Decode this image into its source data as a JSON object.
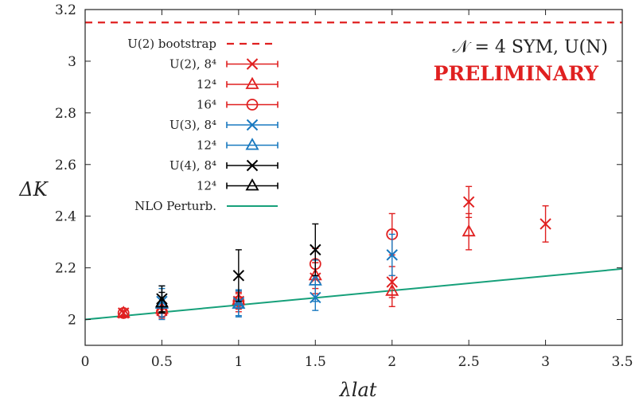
{
  "chart_data": {
    "type": "scatter",
    "xlabel": "λlat",
    "ylabel": "ΔK",
    "xlim": [
      0,
      3.5
    ],
    "ylim": [
      1.9,
      3.2
    ],
    "xticks": [
      "0",
      "0.5",
      "1",
      "1.5",
      "2",
      "2.5",
      "3",
      "3.5"
    ],
    "yticks": [
      "2",
      "2.2",
      "2.4",
      "2.6",
      "2.8",
      "3",
      "3.2"
    ],
    "grid": false,
    "legend_position": "top-left",
    "annotation": {
      "title": "𝒩 = 4 SYM, U(N)",
      "subtitle": "PRELIMINARY"
    },
    "colors": {
      "red": "#e02020",
      "blue": "#1a7ac0",
      "black": "#000000",
      "green": "#16a07a"
    },
    "bootstrap": {
      "name": "U(2) bootstrap",
      "y": 3.15,
      "color": "#e02020"
    },
    "perturbative": {
      "name": "NLO Perturb.",
      "x": [
        0,
        3.5
      ],
      "y": [
        2.0,
        2.196
      ],
      "color": "#16a07a"
    },
    "series": [
      {
        "name": "U(2), 8⁴",
        "marker": "x",
        "color": "#e02020",
        "points": [
          {
            "x": 0.25,
            "y": 2.025,
            "err": 0.01
          },
          {
            "x": 0.5,
            "y": 2.035,
            "err": 0.03
          },
          {
            "x": 1.0,
            "y": 2.07,
            "err": 0.04
          },
          {
            "x": 1.5,
            "y": 2.16,
            "err": 0.06
          },
          {
            "x": 2.0,
            "y": 2.145,
            "err": 0.06
          },
          {
            "x": 2.5,
            "y": 2.455,
            "err": 0.06
          },
          {
            "x": 3.0,
            "y": 2.37,
            "err": 0.07
          }
        ]
      },
      {
        "name": "12⁴",
        "marker": "triangle",
        "color": "#e02020",
        "points": [
          {
            "x": 0.25,
            "y": 2.025,
            "err": 0.01
          },
          {
            "x": 0.5,
            "y": 2.04,
            "err": 0.03
          },
          {
            "x": 1.0,
            "y": 2.075,
            "err": 0.03
          },
          {
            "x": 1.5,
            "y": 2.17,
            "err": 0.05
          },
          {
            "x": 2.0,
            "y": 2.11,
            "err": 0.06
          },
          {
            "x": 2.5,
            "y": 2.34,
            "err": 0.07
          }
        ]
      },
      {
        "name": "16⁴",
        "marker": "circle",
        "color": "#e02020",
        "points": [
          {
            "x": 0.25,
            "y": 2.025,
            "err": 0.01
          },
          {
            "x": 0.5,
            "y": 2.03,
            "err": 0.02
          },
          {
            "x": 1.0,
            "y": 2.07,
            "err": 0.03
          },
          {
            "x": 1.5,
            "y": 2.215,
            "err": 0.06
          },
          {
            "x": 2.0,
            "y": 2.33,
            "err": 0.08
          }
        ]
      },
      {
        "name": "U(3), 8⁴",
        "marker": "x",
        "color": "#1a7ac0",
        "points": [
          {
            "x": 0.5,
            "y": 2.07,
            "err": 0.06
          },
          {
            "x": 1.0,
            "y": 2.065,
            "err": 0.05
          },
          {
            "x": 1.5,
            "y": 2.085,
            "err": 0.05
          },
          {
            "x": 2.0,
            "y": 2.25,
            "err": 0.08
          }
        ]
      },
      {
        "name": "12⁴",
        "marker": "triangle",
        "color": "#1a7ac0",
        "points": [
          {
            "x": 0.5,
            "y": 2.06,
            "err": 0.06
          },
          {
            "x": 1.0,
            "y": 2.06,
            "err": 0.05
          },
          {
            "x": 1.5,
            "y": 2.15,
            "err": 0.08
          }
        ]
      },
      {
        "name": "U(4), 8⁴",
        "marker": "x",
        "color": "#000000",
        "points": [
          {
            "x": 0.5,
            "y": 2.08,
            "err": 0.05
          },
          {
            "x": 1.0,
            "y": 2.17,
            "err": 0.1
          },
          {
            "x": 1.5,
            "y": 2.27,
            "err": 0.1
          }
        ]
      },
      {
        "name": "12⁴",
        "marker": "triangle",
        "color": "#000000",
        "points": [
          {
            "x": 0.5,
            "y": 2.065,
            "err": 0.04
          }
        ]
      }
    ]
  }
}
